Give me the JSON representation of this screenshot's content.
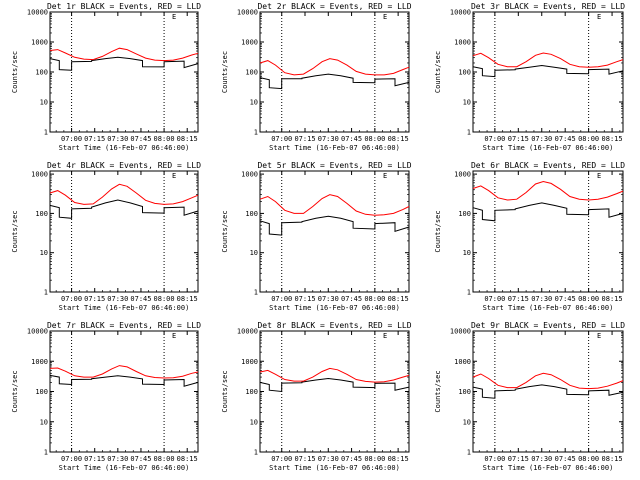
{
  "colors": {
    "events": "#000000",
    "lld": "#ff0000",
    "background": "#ffffff"
  },
  "chart_data": [
    {
      "type": "line",
      "title": "Det 1r BLACK = Events, RED = LLD",
      "xlabel": "Start Time (16-Feb-07 06:46:00)",
      "ylabel": "Counts/sec",
      "x_tick_labels": [
        "07:00",
        "07:15",
        "07:30",
        "07:45",
        "08:00",
        "08:15"
      ],
      "x_ticks_min": [
        14,
        29,
        44,
        59,
        74,
        89
      ],
      "xlim_min": [
        0,
        96
      ],
      "y_tick_labels": [
        "1",
        "10",
        "100",
        "1000",
        "10000"
      ],
      "yscale": "log",
      "ylim": [
        1,
        10000
      ],
      "corner_label": "E",
      "dotted_lines_min": [
        14,
        74
      ],
      "series": [
        {
          "name": "Events",
          "color": "#000000",
          "x_min": [
            0,
            6,
            6.01,
            14,
            14.01,
            27,
            27.01,
            36,
            44,
            52,
            60,
            60.01,
            74,
            74.01,
            87,
            87.01,
            96
          ],
          "y": [
            280,
            240,
            120,
            115,
            220,
            225,
            240,
            280,
            310,
            280,
            240,
            150,
            148,
            220,
            230,
            140,
            190
          ]
        },
        {
          "name": "LLD",
          "color": "#ff0000",
          "x_min": [
            0,
            5,
            10,
            16,
            22,
            28,
            34,
            40,
            45,
            50,
            56,
            62,
            68,
            74,
            80,
            86,
            92,
            96
          ],
          "y": [
            520,
            560,
            430,
            310,
            270,
            260,
            330,
            480,
            620,
            560,
            400,
            290,
            250,
            240,
            250,
            290,
            370,
            420
          ]
        }
      ]
    },
    {
      "type": "line",
      "title": "Det 2r BLACK = Events, RED = LLD",
      "xlabel": "Start Time (16-Feb-07 06:46:00)",
      "ylabel": "Counts/sec",
      "x_tick_labels": [
        "07:00",
        "07:15",
        "07:30",
        "07:45",
        "08:00",
        "08:15"
      ],
      "x_ticks_min": [
        14,
        29,
        44,
        59,
        74,
        89
      ],
      "xlim_min": [
        0,
        96
      ],
      "y_tick_labels": [
        "1",
        "10",
        "100",
        "1000",
        "10000"
      ],
      "yscale": "log",
      "ylim": [
        1,
        10000
      ],
      "corner_label": "E",
      "dotted_lines_min": [
        14,
        74
      ],
      "series": [
        {
          "name": "Events",
          "color": "#000000",
          "x_min": [
            0,
            6,
            6.01,
            14,
            14.01,
            27,
            27.01,
            36,
            44,
            52,
            60,
            60.01,
            74,
            74.01,
            87,
            87.01,
            96
          ],
          "y": [
            65,
            55,
            30,
            28,
            60,
            60,
            62,
            75,
            85,
            75,
            62,
            45,
            44,
            58,
            60,
            35,
            45
          ]
        },
        {
          "name": "LLD",
          "color": "#ff0000",
          "x_min": [
            0,
            5,
            10,
            16,
            22,
            28,
            34,
            40,
            45,
            50,
            56,
            62,
            68,
            74,
            80,
            86,
            92,
            96
          ],
          "y": [
            200,
            240,
            170,
            95,
            80,
            85,
            130,
            220,
            280,
            250,
            170,
            105,
            85,
            80,
            80,
            90,
            120,
            145
          ]
        }
      ]
    },
    {
      "type": "line",
      "title": "Det 3r BLACK = Events, RED = LLD",
      "xlabel": "Start Time (16-Feb-07 06:46:00)",
      "ylabel": "Counts/sec",
      "x_tick_labels": [
        "07:00",
        "07:15",
        "07:30",
        "07:45",
        "08:00",
        "08:15"
      ],
      "x_ticks_min": [
        14,
        29,
        44,
        59,
        74,
        89
      ],
      "xlim_min": [
        0,
        96
      ],
      "y_tick_labels": [
        "1",
        "10",
        "100",
        "1000",
        "10000"
      ],
      "yscale": "log",
      "ylim": [
        1,
        10000
      ],
      "corner_label": "E",
      "dotted_lines_min": [
        14,
        74
      ],
      "series": [
        {
          "name": "Events",
          "color": "#000000",
          "x_min": [
            0,
            6,
            6.01,
            14,
            14.01,
            27,
            27.01,
            36,
            44,
            52,
            60,
            60.01,
            74,
            74.01,
            87,
            87.01,
            96
          ],
          "y": [
            150,
            130,
            75,
            70,
            115,
            118,
            125,
            145,
            165,
            145,
            125,
            90,
            88,
            120,
            125,
            85,
            110
          ]
        },
        {
          "name": "LLD",
          "color": "#ff0000",
          "x_min": [
            0,
            5,
            10,
            16,
            22,
            28,
            34,
            40,
            45,
            50,
            56,
            62,
            68,
            74,
            80,
            86,
            92,
            96
          ],
          "y": [
            350,
            420,
            300,
            180,
            150,
            150,
            220,
            360,
            430,
            390,
            280,
            180,
            150,
            145,
            150,
            170,
            220,
            260
          ]
        }
      ]
    },
    {
      "type": "line",
      "title": "Det 4r BLACK = Events, RED = LLD",
      "xlabel": "Start Time (16-Feb-07 06:46:00)",
      "ylabel": "Counts/sec",
      "x_tick_labels": [
        "07:00",
        "07:15",
        "07:30",
        "07:45",
        "08:00",
        "08:15"
      ],
      "x_ticks_min": [
        14,
        29,
        44,
        59,
        74,
        89
      ],
      "xlim_min": [
        0,
        96
      ],
      "y_tick_labels": [
        "1",
        "10",
        "100",
        "1000"
      ],
      "yscale": "log",
      "ylim": [
        1,
        1200
      ],
      "corner_label": "E",
      "dotted_lines_min": [
        14,
        74
      ],
      "series": [
        {
          "name": "Events",
          "color": "#000000",
          "x_min": [
            0,
            6,
            6.01,
            14,
            14.01,
            27,
            27.01,
            36,
            44,
            52,
            60,
            60.01,
            74,
            74.01,
            87,
            87.01,
            96
          ],
          "y": [
            160,
            140,
            80,
            75,
            130,
            135,
            145,
            185,
            220,
            185,
            150,
            105,
            102,
            140,
            145,
            90,
            115
          ]
        },
        {
          "name": "LLD",
          "color": "#ff0000",
          "x_min": [
            0,
            5,
            10,
            16,
            22,
            28,
            34,
            40,
            45,
            50,
            56,
            62,
            68,
            74,
            80,
            86,
            92,
            96
          ],
          "y": [
            330,
            380,
            290,
            190,
            170,
            175,
            260,
            420,
            550,
            490,
            330,
            215,
            180,
            170,
            175,
            200,
            250,
            290
          ]
        }
      ]
    },
    {
      "type": "line",
      "title": "Det 5r BLACK = Events, RED = LLD",
      "xlabel": "Start Time (16-Feb-07 06:46:00)",
      "ylabel": "Counts/sec",
      "x_tick_labels": [
        "07:00",
        "07:15",
        "07:30",
        "07:45",
        "08:00",
        "08:15"
      ],
      "x_ticks_min": [
        14,
        29,
        44,
        59,
        74,
        89
      ],
      "xlim_min": [
        0,
        96
      ],
      "y_tick_labels": [
        "1",
        "10",
        "100",
        "1000"
      ],
      "yscale": "log",
      "ylim": [
        1,
        1200
      ],
      "corner_label": "E",
      "dotted_lines_min": [
        14,
        74
      ],
      "series": [
        {
          "name": "Events",
          "color": "#000000",
          "x_min": [
            0,
            6,
            6.01,
            14,
            14.01,
            27,
            27.01,
            36,
            44,
            52,
            60,
            60.01,
            74,
            74.01,
            87,
            87.01,
            96
          ],
          "y": [
            65,
            55,
            30,
            28,
            58,
            60,
            62,
            75,
            85,
            75,
            62,
            42,
            40,
            55,
            58,
            35,
            45
          ]
        },
        {
          "name": "LLD",
          "color": "#ff0000",
          "x_min": [
            0,
            5,
            10,
            16,
            22,
            28,
            34,
            40,
            45,
            50,
            56,
            62,
            68,
            74,
            80,
            86,
            92,
            96
          ],
          "y": [
            230,
            270,
            200,
            120,
            100,
            100,
            150,
            240,
            300,
            270,
            180,
            115,
            95,
            90,
            92,
            100,
            125,
            150
          ]
        }
      ]
    },
    {
      "type": "line",
      "title": "Det 6r BLACK = Events, RED = LLD",
      "xlabel": "Start Time (16-Feb-07 06:46:00)",
      "ylabel": "Counts/sec",
      "x_tick_labels": [
        "07:00",
        "07:15",
        "07:30",
        "07:45",
        "08:00",
        "08:15"
      ],
      "x_ticks_min": [
        14,
        29,
        44,
        59,
        74,
        89
      ],
      "xlim_min": [
        0,
        96
      ],
      "y_tick_labels": [
        "1",
        "10",
        "100",
        "1000"
      ],
      "yscale": "log",
      "ylim": [
        1,
        1200
      ],
      "corner_label": "E",
      "dotted_lines_min": [
        14,
        74
      ],
      "series": [
        {
          "name": "Events",
          "color": "#000000",
          "x_min": [
            0,
            6,
            6.01,
            14,
            14.01,
            27,
            27.01,
            36,
            44,
            52,
            60,
            60.01,
            74,
            74.01,
            87,
            87.01,
            96
          ],
          "y": [
            140,
            120,
            70,
            65,
            120,
            125,
            130,
            160,
            185,
            160,
            135,
            95,
            92,
            125,
            130,
            80,
            100
          ]
        },
        {
          "name": "LLD",
          "color": "#ff0000",
          "x_min": [
            0,
            5,
            10,
            16,
            22,
            28,
            34,
            40,
            45,
            50,
            56,
            62,
            68,
            74,
            80,
            86,
            92,
            96
          ],
          "y": [
            430,
            500,
            380,
            250,
            220,
            230,
            340,
            560,
            650,
            580,
            410,
            270,
            230,
            220,
            230,
            260,
            320,
            370
          ]
        }
      ]
    },
    {
      "type": "line",
      "title": "Det 7r BLACK = Events, RED = LLD",
      "xlabel": "Start Time (16-Feb-07 06:46:00)",
      "ylabel": "Counts/sec",
      "x_tick_labels": [
        "07:00",
        "07:15",
        "07:30",
        "07:45",
        "08:00",
        "08:15"
      ],
      "x_ticks_min": [
        14,
        29,
        44,
        59,
        74,
        89
      ],
      "xlim_min": [
        0,
        96
      ],
      "y_tick_labels": [
        "1",
        "10",
        "100",
        "1000",
        "10000"
      ],
      "yscale": "log",
      "ylim": [
        1,
        10000
      ],
      "corner_label": "E",
      "dotted_lines_min": [
        14,
        74
      ],
      "series": [
        {
          "name": "Events",
          "color": "#000000",
          "x_min": [
            0,
            6,
            6.01,
            14,
            14.01,
            27,
            27.01,
            36,
            44,
            52,
            60,
            60.01,
            74,
            74.01,
            87,
            87.01,
            96
          ],
          "y": [
            340,
            300,
            180,
            170,
            250,
            255,
            265,
            300,
            330,
            300,
            260,
            175,
            170,
            240,
            250,
            150,
            200
          ]
        },
        {
          "name": "LLD",
          "color": "#ff0000",
          "x_min": [
            0,
            5,
            10,
            16,
            22,
            28,
            34,
            40,
            45,
            50,
            56,
            62,
            68,
            74,
            80,
            86,
            92,
            96
          ],
          "y": [
            580,
            600,
            470,
            330,
            300,
            300,
            380,
            560,
            720,
            650,
            460,
            330,
            290,
            280,
            285,
            320,
            400,
            440
          ]
        }
      ]
    },
    {
      "type": "line",
      "title": "Det 8r BLACK = Events, RED = LLD",
      "xlabel": "Start Time (16-Feb-07 06:46:00)",
      "ylabel": "Counts/sec",
      "x_tick_labels": [
        "07:00",
        "07:15",
        "07:30",
        "07:45",
        "08:00",
        "08:15"
      ],
      "x_ticks_min": [
        14,
        29,
        44,
        59,
        74,
        89
      ],
      "xlim_min": [
        0,
        96
      ],
      "y_tick_labels": [
        "1",
        "10",
        "100",
        "1000",
        "10000"
      ],
      "yscale": "log",
      "ylim": [
        1,
        10000
      ],
      "corner_label": "E",
      "dotted_lines_min": [
        14,
        74
      ],
      "series": [
        {
          "name": "Events",
          "color": "#000000",
          "x_min": [
            0,
            6,
            6.01,
            14,
            14.01,
            27,
            27.01,
            36,
            44,
            52,
            60,
            60.01,
            74,
            74.01,
            87,
            87.01,
            96
          ],
          "y": [
            200,
            170,
            110,
            100,
            190,
            195,
            205,
            240,
            270,
            240,
            205,
            140,
            135,
            185,
            190,
            110,
            140
          ]
        },
        {
          "name": "LLD",
          "color": "#ff0000",
          "x_min": [
            0,
            5,
            10,
            16,
            22,
            28,
            34,
            40,
            45,
            50,
            56,
            62,
            68,
            74,
            80,
            86,
            92,
            96
          ],
          "y": [
            440,
            500,
            370,
            250,
            220,
            220,
            300,
            460,
            580,
            520,
            370,
            250,
            215,
            205,
            210,
            240,
            300,
            340
          ]
        }
      ]
    },
    {
      "type": "line",
      "title": "Det 9r BLACK = Events, RED = LLD",
      "xlabel": "Start Time (16-Feb-07 06:46:00)",
      "ylabel": "Counts/sec",
      "x_tick_labels": [
        "07:00",
        "07:15",
        "07:30",
        "07:45",
        "08:00",
        "08:15"
      ],
      "x_ticks_min": [
        14,
        29,
        44,
        59,
        74,
        89
      ],
      "xlim_min": [
        0,
        96
      ],
      "y_tick_labels": [
        "1",
        "10",
        "100",
        "1000",
        "10000"
      ],
      "yscale": "log",
      "ylim": [
        1,
        10000
      ],
      "corner_label": "E",
      "dotted_lines_min": [
        14,
        74
      ],
      "series": [
        {
          "name": "Events",
          "color": "#000000",
          "x_min": [
            0,
            6,
            6.01,
            14,
            14.01,
            27,
            27.01,
            36,
            44,
            52,
            60,
            60.01,
            74,
            74.01,
            87,
            87.01,
            96
          ],
          "y": [
            140,
            120,
            65,
            60,
            105,
            110,
            118,
            145,
            165,
            145,
            120,
            80,
            78,
            105,
            110,
            75,
            95
          ]
        },
        {
          "name": "LLD",
          "color": "#ff0000",
          "x_min": [
            0,
            5,
            10,
            16,
            22,
            28,
            34,
            40,
            45,
            50,
            56,
            62,
            68,
            74,
            80,
            86,
            92,
            96
          ],
          "y": [
            300,
            380,
            270,
            160,
            135,
            135,
            200,
            330,
            400,
            360,
            250,
            160,
            130,
            125,
            130,
            150,
            190,
            230
          ]
        }
      ]
    }
  ]
}
